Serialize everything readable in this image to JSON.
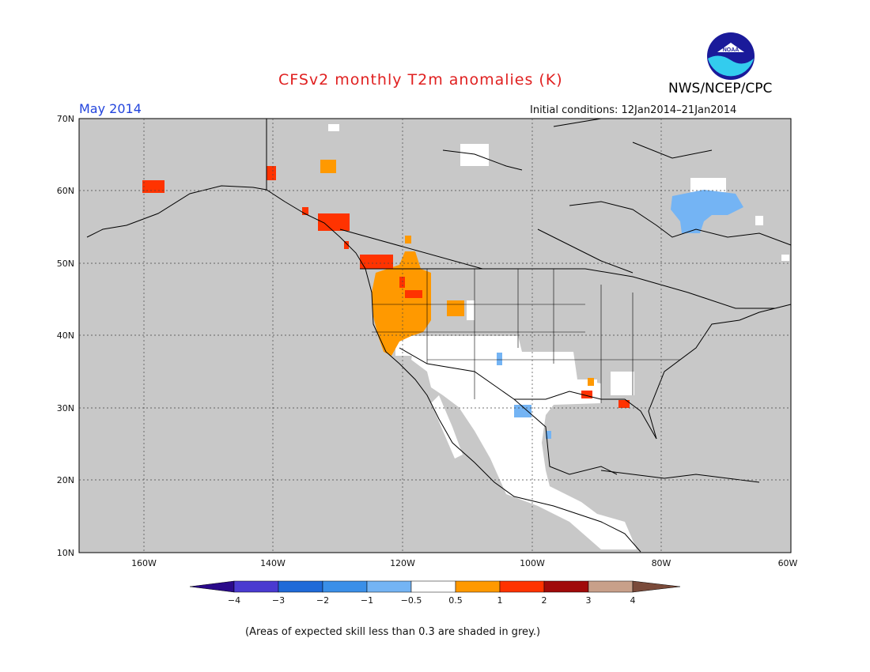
{
  "title": "CFSv2 monthly T2m anomalies (K)",
  "org": "NWS/NCEP/CPC",
  "logo_text": "NOAA",
  "valid_month": "May 2014",
  "initial_conditions": "Initial conditions: 12Jan2014–21Jan2014",
  "footnote": "(Areas of expected skill less than 0.3 are shaded in grey.)",
  "map": {
    "lon_range": [
      -170,
      -60
    ],
    "lat_range": [
      10,
      70
    ],
    "lon_ticks": [
      {
        "lon": -160,
        "label": "160W"
      },
      {
        "lon": -140,
        "label": "140W"
      },
      {
        "lon": -120,
        "label": "120W"
      },
      {
        "lon": -100,
        "label": "100W"
      },
      {
        "lon": -80,
        "label": "80W"
      },
      {
        "lon": -60,
        "label": "60W"
      }
    ],
    "lat_ticks": [
      {
        "lat": 70,
        "label": "70N"
      },
      {
        "lat": 60,
        "label": "60N"
      },
      {
        "lat": 50,
        "label": "50N"
      },
      {
        "lat": 40,
        "label": "40N"
      },
      {
        "lat": 30,
        "label": "30N"
      },
      {
        "lat": 20,
        "label": "20N"
      },
      {
        "lat": 10,
        "label": "10N"
      }
    ],
    "colors": {
      "low_skill_grey": "#c8c8c8",
      "near_normal_white": "#ffffff",
      "plus_0_5_to_1": "#ff9900",
      "plus_1_to_2": "#ff3300",
      "minus_1_to_minus_0_5": "#74b4f4"
    }
  },
  "colorbar": {
    "tick_labels": [
      "−4",
      "−3",
      "−2",
      "−1",
      "−0.5",
      "0.5",
      "1",
      "2",
      "3",
      "4"
    ],
    "colors": [
      "#2a0a8a",
      "#4a3ad0",
      "#1f6ad8",
      "#3a8fe8",
      "#74b4f4",
      "#ffffff",
      "#ff9900",
      "#ff3300",
      "#a00a0a",
      "#c8a08a",
      "#7a4a3a"
    ]
  }
}
